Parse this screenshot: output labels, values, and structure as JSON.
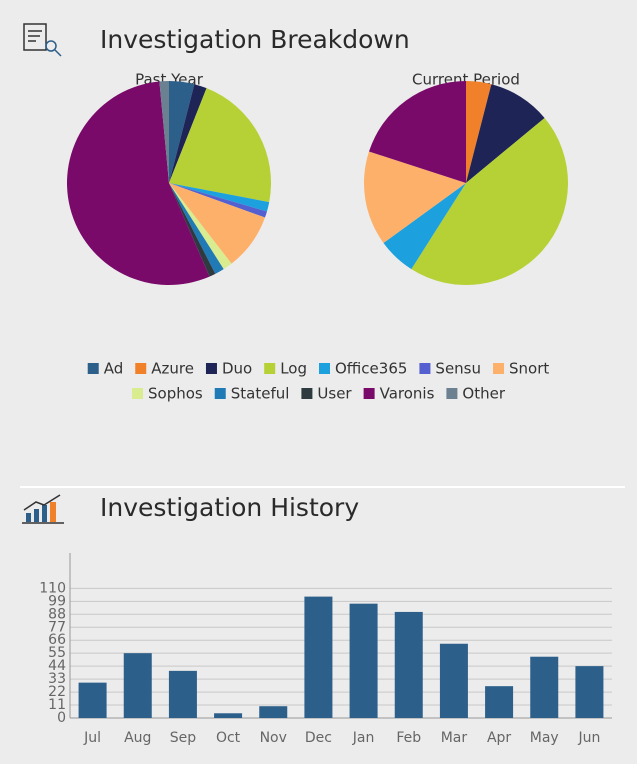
{
  "sections": [
    "Investigation Breakdown",
    "Investigation History"
  ],
  "legend": {
    "categories": [
      "Ad",
      "Azure",
      "Duo",
      "Log",
      "Office365",
      "Sensu",
      "Snort",
      "Sophos",
      "Stateful",
      "User",
      "Varonis",
      "Other"
    ],
    "colors": [
      "#2c5f8a",
      "#f0802a",
      "#1e2455",
      "#b5d135",
      "#1ca0de",
      "#5560d0",
      "#fdb06a",
      "#d9ec8f",
      "#1f7ab5",
      "#2d3a40",
      "#7a0a6a",
      "#6b8090"
    ]
  },
  "chart_data": [
    {
      "type": "pie",
      "title": "Past Year",
      "values": [
        4,
        0,
        2,
        22,
        1.5,
        1,
        9,
        1.5,
        1.5,
        1,
        55,
        1.5
      ]
    },
    {
      "type": "pie",
      "title": "Current Period",
      "values": [
        0,
        4,
        10,
        45,
        6,
        0,
        15,
        0,
        0,
        0,
        20,
        0
      ]
    },
    {
      "type": "bar",
      "categories": [
        "Jul",
        "Aug",
        "Sep",
        "Oct",
        "Nov",
        "Dec",
        "Jan",
        "Feb",
        "Mar",
        "Apr",
        "May",
        "Jun"
      ],
      "values": [
        30,
        55,
        40,
        4,
        10,
        103,
        97,
        90,
        63,
        27,
        52,
        44
      ],
      "color": "#2c5f8a",
      "ylim": [
        0,
        140
      ],
      "yticks": [
        0,
        11,
        22,
        33,
        44,
        55,
        66,
        77,
        88,
        99,
        110
      ],
      "grid": true
    }
  ]
}
